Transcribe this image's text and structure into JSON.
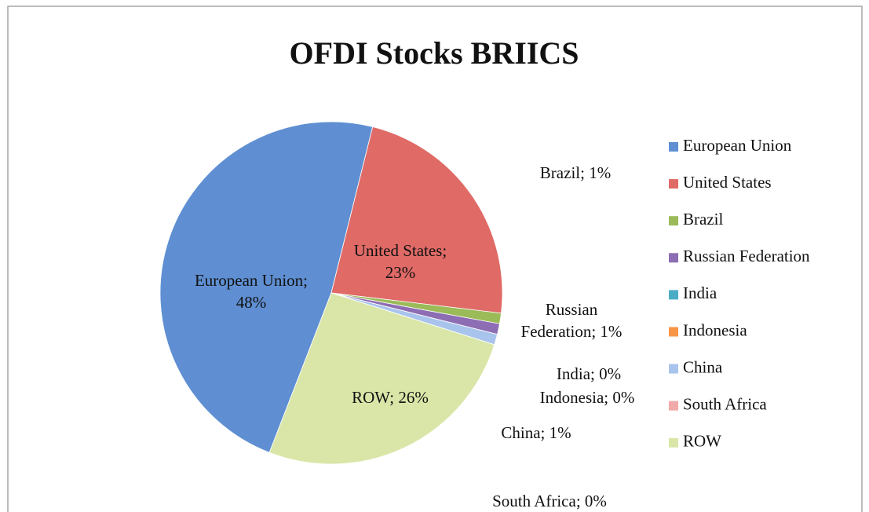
{
  "chart_data": {
    "type": "pie",
    "title": "OFDI Stocks BRIICS",
    "categories": [
      "European Union",
      "United States",
      "Brazil",
      "Russian Federation",
      "India",
      "Indonesia",
      "China",
      "South Africa",
      "ROW"
    ],
    "values": [
      48,
      23,
      1,
      1,
      0,
      0,
      1,
      0,
      26
    ],
    "value_labels": [
      "European Union; 48%",
      "United States; 23%",
      "Brazil; 1%",
      "Russian Federation; 1%",
      "India; 0%",
      "Indonesia; 0%",
      "China; 1%",
      "South Africa; 0%",
      "ROW; 26%"
    ],
    "colors": [
      "#5f8fd2",
      "#df6a66",
      "#9bbb59",
      "#8d6db3",
      "#4bacc6",
      "#f79646",
      "#a9c4ec",
      "#f2a9a9",
      "#d9e6a8"
    ],
    "legend": "right"
  }
}
